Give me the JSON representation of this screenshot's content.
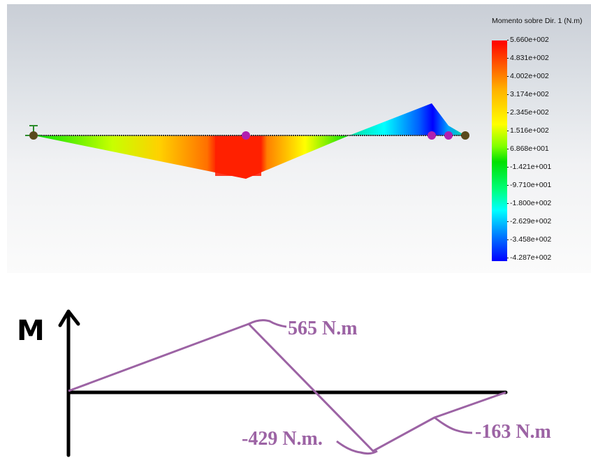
{
  "legend": {
    "title": "Momento sobre Dir. 1 (N.m)",
    "ticks": [
      "5.660e+002",
      "4.831e+002",
      "4.002e+002",
      "3.174e+002",
      "2.345e+002",
      "1.516e+002",
      "6.868e+001",
      "-1.421e+001",
      "-9.710e+001",
      "-1.800e+002",
      "-2.629e+002",
      "-3.458e+002",
      "-4.287e+002"
    ],
    "colors": [
      "#ff0000",
      "#ffff00",
      "#00ff00",
      "#00ffff",
      "#0000ff"
    ]
  },
  "sketch": {
    "axis_label": "M",
    "label_max": "565 N.m",
    "label_min": "-429 N.m.",
    "label_end": "-163 N.m",
    "line_color": "#9c63a4"
  }
}
